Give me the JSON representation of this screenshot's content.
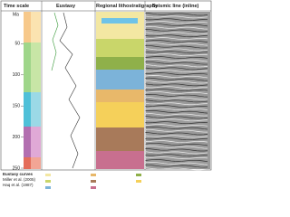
{
  "header": {
    "time_scale": "Time scale",
    "eustasy": "Eustasy",
    "lithostratigraphy": "Regional lithostratigraphy",
    "seismic": "Seismic line (inline)"
  },
  "time_axis": {
    "unit": "Ma",
    "ticks": [
      50,
      100,
      150,
      200,
      250
    ],
    "range": [
      0,
      250
    ]
  },
  "eustasy_caption": {
    "title": "Eustasy curves",
    "lines": [
      "Miller et al. (2005)",
      "Haq et al. (1987)"
    ]
  }
}
